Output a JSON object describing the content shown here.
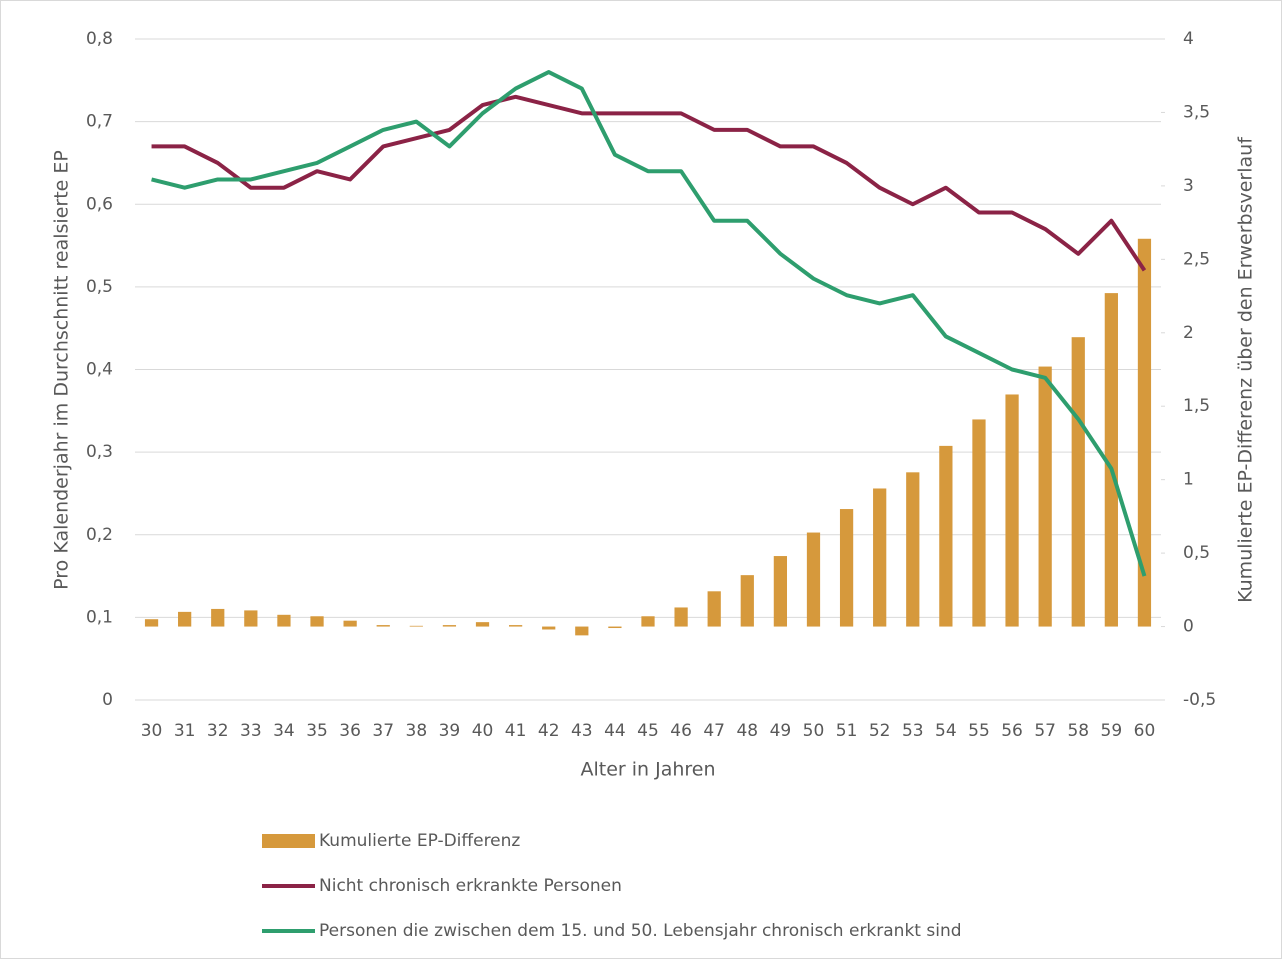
{
  "chart_data": {
    "type": "combo",
    "x_label": "Alter in Jahren",
    "y_label": "Pro Kalenderjahr im Durchschnitt realsierte EP",
    "y2_label": "Kumulierte EP-Differenz über den Erwerbsverlauf",
    "categories": [
      "30",
      "31",
      "32",
      "33",
      "34",
      "35",
      "36",
      "37",
      "38",
      "39",
      "40",
      "41",
      "42",
      "43",
      "44",
      "45",
      "46",
      "47",
      "48",
      "49",
      "50",
      "51",
      "52",
      "53",
      "54",
      "55",
      "56",
      "57",
      "58",
      "59",
      "60"
    ],
    "ylim": [
      0,
      0.8
    ],
    "yticks": [
      0,
      {
        "value": 0.1,
        "label": "0,1"
      },
      {
        "value": 0.2,
        "label": "0,2"
      },
      {
        "value": 0.3,
        "label": "0,3"
      },
      {
        "value": 0.4,
        "label": "0,4"
      },
      {
        "value": 0.5,
        "label": "0,5"
      },
      {
        "value": 0.6,
        "label": "0,6"
      },
      {
        "value": 0.7,
        "label": "0,7"
      },
      {
        "value": 0.8,
        "label": "0,8"
      }
    ],
    "y2lim": [
      -0.5,
      4
    ],
    "y2ticks": [
      {
        "value": -0.5,
        "label": "-0,5"
      },
      0,
      {
        "value": 0.5,
        "label": "0,5"
      },
      1,
      {
        "value": 1.5,
        "label": "1,5"
      },
      2,
      {
        "value": 2.5,
        "label": "2,5"
      },
      3,
      {
        "value": 3.5,
        "label": "3,5"
      },
      4
    ],
    "grid": true,
    "legend": "bottom",
    "series": [
      {
        "name": "Kumulierte EP-Differenz",
        "type": "bar",
        "axis": "y2",
        "color": "#d6993c",
        "values": [
          0.05,
          0.1,
          0.12,
          0.11,
          0.08,
          0.07,
          0.04,
          0.01,
          0.005,
          0.01,
          0.03,
          0.01,
          -0.02,
          -0.06,
          -0.01,
          0.07,
          0.13,
          0.24,
          0.35,
          0.48,
          0.64,
          0.8,
          0.94,
          1.05,
          1.23,
          1.41,
          1.58,
          1.77,
          1.97,
          2.27,
          2.64
        ]
      },
      {
        "name": "Nicht chronisch erkrankte Personen",
        "type": "line",
        "color": "#8b2346",
        "values": [
          0.67,
          0.67,
          0.65,
          0.62,
          0.62,
          0.64,
          0.63,
          0.67,
          0.68,
          0.69,
          0.72,
          0.73,
          0.72,
          0.71,
          0.71,
          0.71,
          0.71,
          0.69,
          0.69,
          0.67,
          0.67,
          0.65,
          0.62,
          0.6,
          0.62,
          0.59,
          0.59,
          0.57,
          0.54,
          0.58,
          0.52
        ]
      },
      {
        "name": "Personen die zwischen dem 15. und 50. Lebensjahr chronisch erkrankt sind",
        "type": "line",
        "color": "#2e9e6e",
        "values": [
          0.63,
          0.62,
          0.63,
          0.63,
          0.64,
          0.65,
          0.67,
          0.69,
          0.7,
          0.67,
          0.71,
          0.74,
          0.76,
          0.74,
          0.66,
          0.64,
          0.64,
          0.58,
          0.58,
          0.54,
          0.51,
          0.49,
          0.48,
          0.49,
          0.44,
          0.42,
          0.4,
          0.39,
          0.34,
          0.28,
          0.15
        ]
      }
    ]
  }
}
